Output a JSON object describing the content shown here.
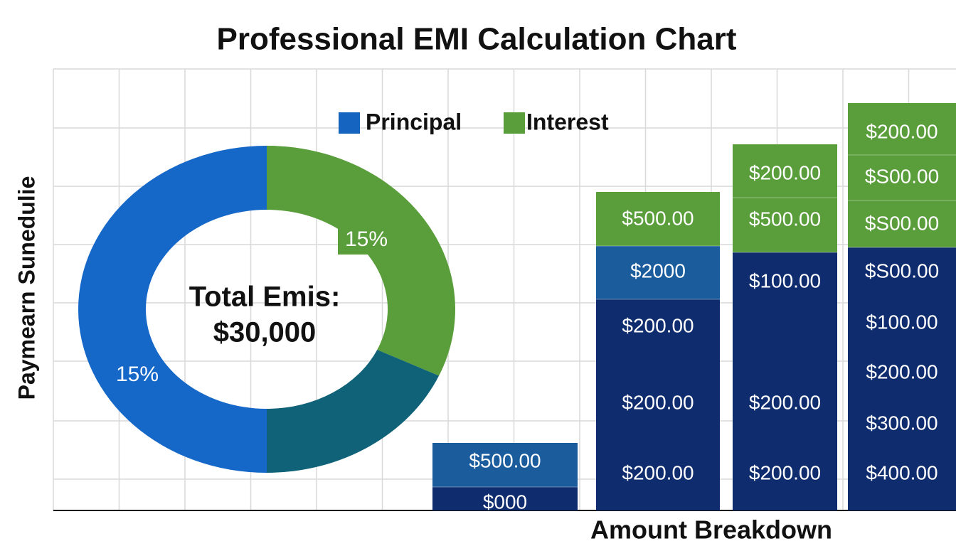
{
  "title": "Professional EMI Calculation Chart",
  "y_axis_label": "Paymearn Sunedulie",
  "x_axis_label": "Amount Breakdown",
  "legend": [
    {
      "name": "Principal",
      "color": "#1565c0"
    },
    {
      "name": "Interest",
      "color": "#5a9e3c"
    }
  ],
  "donut": {
    "center_label": [
      "Total Emis:",
      "$30,000"
    ],
    "segments": [
      {
        "color": "#5a9e3c",
        "label": "15%"
      },
      {
        "color": "#0f6278",
        "label": null
      },
      {
        "color": "#1668c8",
        "label": "15%"
      }
    ]
  },
  "columns": [
    {
      "segments": [
        {
          "color": "#1a5c9c",
          "labels": [
            "$500.00"
          ]
        },
        {
          "color": "#0f2d6e",
          "labels": [
            "$000"
          ]
        }
      ]
    },
    {
      "segments": [
        {
          "color": "#5a9e3c",
          "labels": [
            "$500.00"
          ]
        },
        {
          "color": "#1a5c9c",
          "labels": [
            "$2000"
          ]
        },
        {
          "color": "#0f2d6e",
          "labels": [
            "$200.00",
            "$200.00",
            "$200.00"
          ]
        }
      ]
    },
    {
      "segments": [
        {
          "color": "#5a9e3c",
          "labels": [
            "$200.00"
          ]
        },
        {
          "color": "#5a9e3c",
          "labels": [
            "$500.00"
          ]
        },
        {
          "color": "#0f2d6e",
          "labels": [
            "$100.00",
            "$200.00",
            "$200.00"
          ]
        }
      ]
    },
    {
      "segments": [
        {
          "color": "#5a9e3c",
          "labels": [
            "$200.00"
          ]
        },
        {
          "color": "#5a9e3c",
          "labels": [
            "$S00.00"
          ]
        },
        {
          "color": "#5a9e3c",
          "labels": [
            "$S00.00"
          ]
        },
        {
          "color": "#0f2d6e",
          "labels": [
            "$S00.00",
            "$100.00",
            "$200.00",
            "$300.00",
            "$400.00"
          ]
        }
      ]
    }
  ]
}
